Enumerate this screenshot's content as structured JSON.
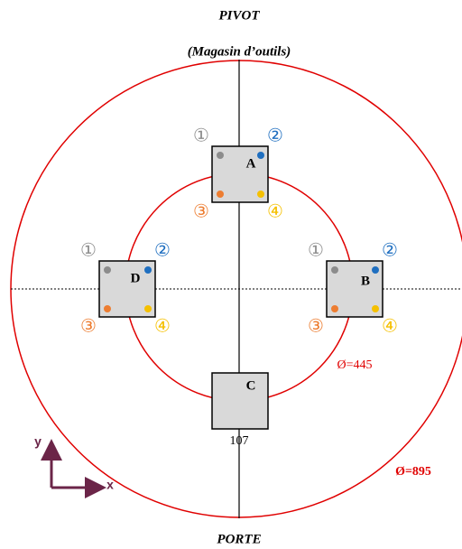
{
  "header": {
    "title": "PIVOT",
    "subtitle": "(Magasin d’outils)"
  },
  "footer": {
    "label": "PORTE"
  },
  "stations": [
    {
      "label": "A",
      "markers": [
        "①",
        "②",
        "③",
        "④"
      ]
    },
    {
      "label": "D",
      "markers": [
        "①",
        "②",
        "③",
        "④"
      ]
    },
    {
      "label": "B",
      "markers": [
        "①",
        "②",
        "③",
        "④"
      ]
    },
    {
      "label": "C"
    }
  ],
  "dimensions": {
    "square": "107",
    "inner_circle": "Ø=445",
    "outer_circle": "Ø=895"
  },
  "axes": {
    "x": "x",
    "y": "y"
  }
}
